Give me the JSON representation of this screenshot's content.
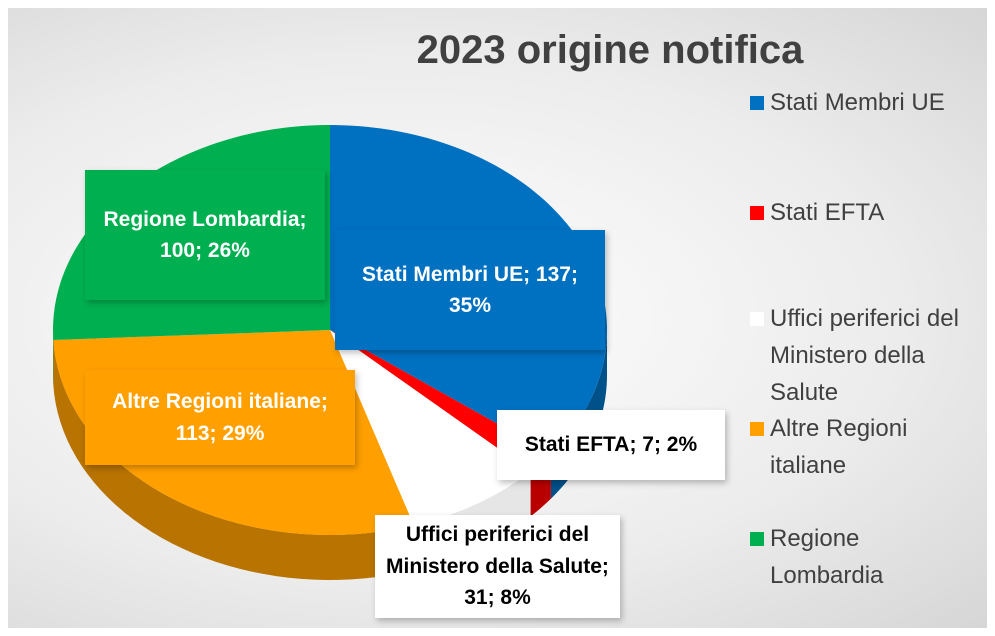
{
  "chart_data": {
    "type": "pie3d",
    "title": "2023 origine notifica",
    "categories": [
      "Stati Membri UE",
      "Stati EFTA",
      "Uffici periferici del Ministero della Salute",
      "Altre Regioni italiane",
      "Regione Lombardia"
    ],
    "values": [
      137,
      7,
      31,
      113,
      100
    ],
    "value_labels": [
      "Stati Membri UE; 137; 35%",
      "Stati EFTA; 7; 2%",
      "Uffici periferici del Ministero della Salute; 31; 8%",
      "Altre Regioni italiane; 113; 29%",
      "Regione Lombardia; 100; 26%"
    ],
    "colors": [
      "#0070c0",
      "#ff0000",
      "#ffffff",
      "#ffa000",
      "#00b050"
    ],
    "legend": "right"
  }
}
